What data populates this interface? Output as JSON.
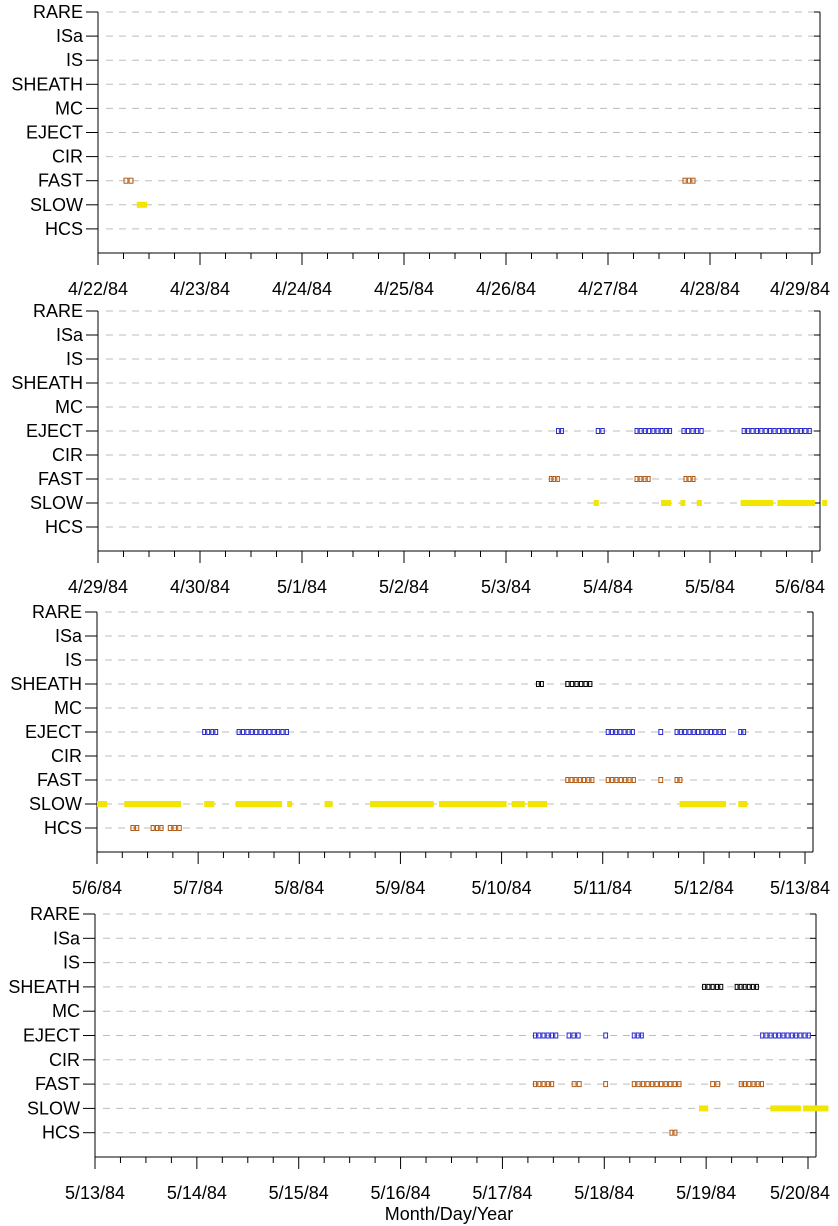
{
  "chart_data": {
    "type": "scatter",
    "categories": [
      "RARE",
      "ISa",
      "IS",
      "SHEATH",
      "MC",
      "EJECT",
      "CIR",
      "FAST",
      "SLOW",
      "HCS"
    ],
    "xlabel": "Month/Day/Year",
    "ylabel": "",
    "grid": "dashed horizontal",
    "colors": {
      "SHEATH": "#000000",
      "EJECT": "#2a2acc",
      "FAST": "#b35a12",
      "HCS": "#b35a12",
      "SLOW": "#f2e600"
    },
    "panels": [
      {
        "ticks": [
          "4/22/84",
          "4/23/84",
          "4/24/84",
          "4/25/84",
          "4/26/84",
          "4/27/84",
          "4/28/84",
          "4/29/84"
        ],
        "series": [
          {
            "category": "FAST",
            "style": "open",
            "segments": [
              [
                0.25,
                0.35
              ],
              [
                5.73,
                5.86
              ]
            ]
          },
          {
            "category": "SLOW",
            "style": "filled",
            "segments": [
              [
                0.38,
                0.48
              ]
            ]
          }
        ]
      },
      {
        "ticks": [
          "4/29/84",
          "4/30/84",
          "5/1/84",
          "5/2/84",
          "5/3/84",
          "5/4/84",
          "5/5/84",
          "5/6/84"
        ],
        "series": [
          {
            "category": "EJECT",
            "style": "open",
            "segments": [
              [
                4.49,
                4.57
              ],
              [
                4.88,
                4.97
              ],
              [
                5.26,
                5.63
              ],
              [
                5.72,
                5.94
              ],
              [
                6.31,
                7.0
              ]
            ]
          },
          {
            "category": "FAST",
            "style": "open",
            "segments": [
              [
                4.42,
                4.53
              ],
              [
                5.26,
                5.42
              ],
              [
                5.74,
                5.86
              ]
            ]
          },
          {
            "category": "SLOW",
            "style": "filled",
            "segments": [
              [
                4.86,
                4.91
              ],
              [
                5.52,
                5.62
              ],
              [
                5.71,
                5.75
              ],
              [
                5.87,
                5.92
              ],
              [
                6.3,
                6.62
              ],
              [
                6.66,
                7.03
              ],
              [
                7.1,
                7.14
              ]
            ]
          }
        ]
      },
      {
        "ticks": [
          "5/6/84",
          "5/7/84",
          "5/8/84",
          "5/9/84",
          "5/10/84",
          "5/11/84",
          "5/12/84",
          "5/13/84"
        ],
        "series": [
          {
            "category": "SHEATH",
            "style": "open",
            "segments": [
              [
                4.34,
                4.42
              ],
              [
                4.63,
                4.9
              ]
            ]
          },
          {
            "category": "EJECT",
            "style": "open",
            "segments": [
              [
                1.04,
                1.2
              ],
              [
                1.38,
                1.9
              ],
              [
                5.03,
                5.32
              ],
              [
                5.55,
                5.6
              ],
              [
                5.71,
                6.22
              ],
              [
                6.34,
                6.42
              ]
            ]
          },
          {
            "category": "FAST",
            "style": "open",
            "segments": [
              [
                4.63,
                4.92
              ],
              [
                5.03,
                5.33
              ],
              [
                5.55,
                5.6
              ],
              [
                5.71,
                5.79
              ]
            ]
          },
          {
            "category": "SLOW",
            "style": "filled",
            "segments": [
              [
                0.0,
                0.1
              ],
              [
                0.27,
                0.83
              ],
              [
                1.06,
                1.16
              ],
              [
                1.37,
                1.83
              ],
              [
                1.88,
                1.92
              ],
              [
                2.25,
                2.33
              ],
              [
                2.7,
                3.33
              ],
              [
                3.38,
                4.05
              ],
              [
                4.1,
                4.23
              ],
              [
                4.26,
                4.45
              ],
              [
                5.76,
                6.22
              ],
              [
                6.34,
                6.43
              ]
            ]
          },
          {
            "category": "HCS",
            "style": "open",
            "segments": [
              [
                0.33,
                0.42
              ],
              [
                0.53,
                0.66
              ],
              [
                0.7,
                0.84
              ]
            ]
          }
        ]
      },
      {
        "ticks": [
          "5/13/84",
          "5/14/84",
          "5/15/84",
          "5/16/84",
          "5/17/84",
          "5/18/84",
          "5/19/84",
          "5/20/84"
        ],
        "series": [
          {
            "category": "SHEATH",
            "style": "open",
            "segments": [
              [
                5.96,
                6.17
              ],
              [
                6.28,
                6.52
              ]
            ]
          },
          {
            "category": "EJECT",
            "style": "open",
            "segments": [
              [
                4.3,
                4.55
              ],
              [
                4.63,
                4.77
              ],
              [
                4.99,
                5.03
              ],
              [
                5.27,
                5.39
              ],
              [
                6.53,
                7.03
              ]
            ]
          },
          {
            "category": "FAST",
            "style": "open",
            "segments": [
              [
                4.3,
                4.51
              ],
              [
                4.68,
                4.78
              ],
              [
                4.99,
                5.03
              ],
              [
                5.27,
                5.76
              ],
              [
                6.04,
                6.14
              ],
              [
                6.32,
                6.57
              ]
            ]
          },
          {
            "category": "SLOW",
            "style": "filled",
            "segments": [
              [
                5.93,
                6.02
              ],
              [
                6.63,
                6.93
              ],
              [
                6.95,
                7.2
              ]
            ]
          },
          {
            "category": "HCS",
            "style": "open",
            "segments": [
              [
                5.64,
                5.72
              ]
            ]
          }
        ]
      }
    ]
  }
}
